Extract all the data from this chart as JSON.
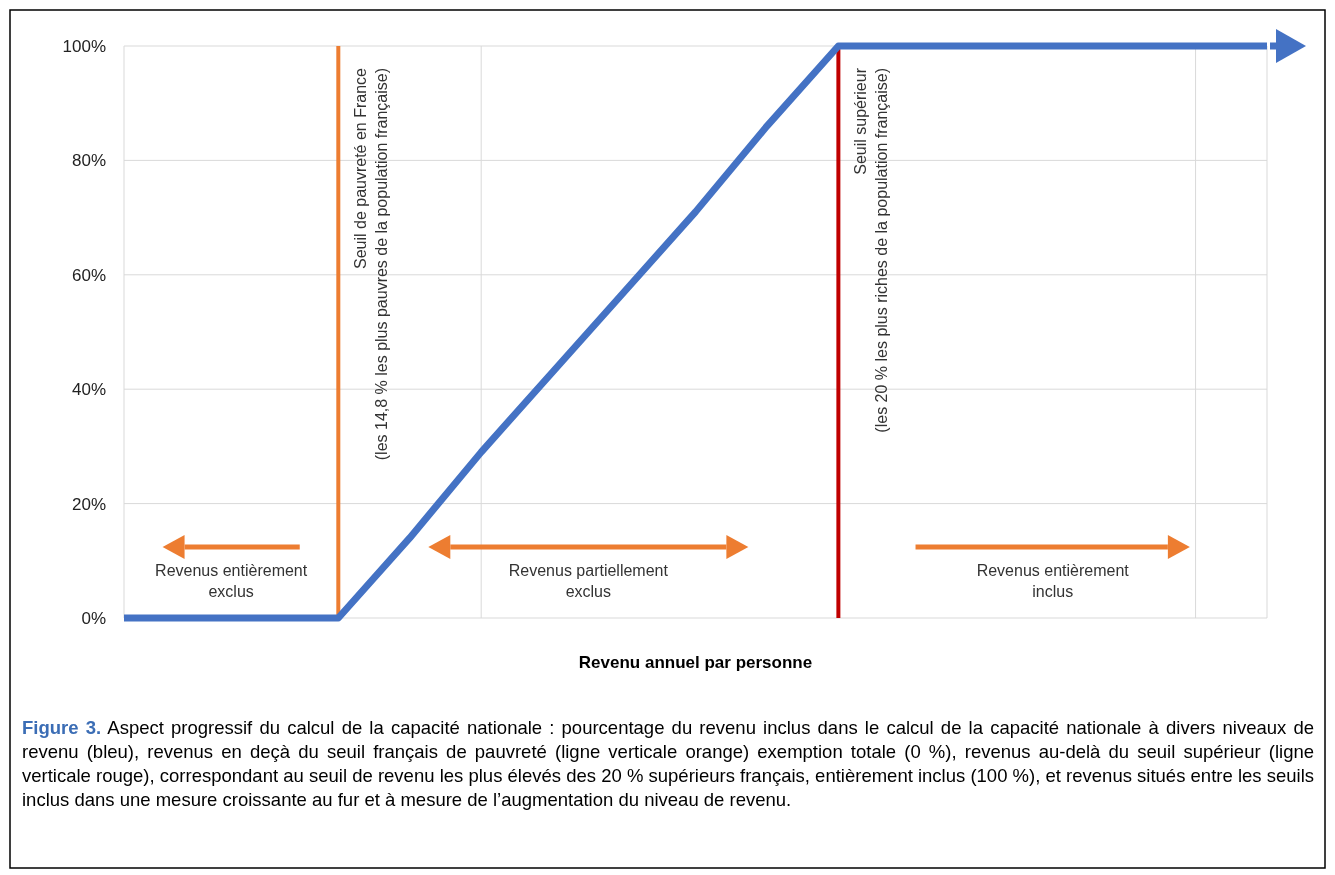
{
  "chart_data": {
    "type": "line",
    "xlabel": "Revenu annuel par personne",
    "categories": [
      null,
      null,
      null,
      null,
      null,
      null,
      null,
      null,
      null,
      null,
      null,
      null,
      null,
      null,
      null,
      null,
      null
    ],
    "series": [
      {
        "color": "#4472c4",
        "values": [
          0,
          0,
          0,
          0,
          14,
          29,
          43,
          57,
          71,
          86,
          100,
          100,
          100,
          100,
          100,
          100,
          100
        ]
      }
    ],
    "ylim": [
      0,
      100
    ],
    "yticks": [
      {
        "value": 0,
        "label": "0%"
      },
      {
        "value": 20,
        "label": "20%"
      },
      {
        "value": 40,
        "label": "40%"
      },
      {
        "value": 60,
        "label": "60%"
      },
      {
        "value": 80,
        "label": "80%"
      },
      {
        "value": 100,
        "label": "100%"
      }
    ],
    "tick_labels": "y",
    "grid": true,
    "marker": "none",
    "line_style": "solid",
    "annotations": [
      "Seuil de pauvreté en France\n(les 14,8 % les plus pauvres de la population française)",
      "Seuil supérieur\n(les 20 % les plus riches de la population française)",
      "Revenus entièrement\nexclus",
      "Revenus partiellement\nexclus",
      "Revenus entièrement\ninclus",
      "Figure 3.",
      "Aspect progressif du calcul de la capacité nationale : pourcentage du revenu inclus dans le calcul de la capacité nationale à divers niveaux de revenu (bleu), revenus en deçà du seuil français de pauvreté (ligne verticale orange) exemption totale (0 %), revenus au-delà du seuil supérieur (ligne verticale rouge), correspondant au seuil de revenu les plus élevés des 20 % supérieurs français, entièrement inclus (100 %), et revenus situés entre les seuils inclus dans une mesure croissante au fur et à mesure de l’augmentation du niveau de revenu."
    ]
  }
}
